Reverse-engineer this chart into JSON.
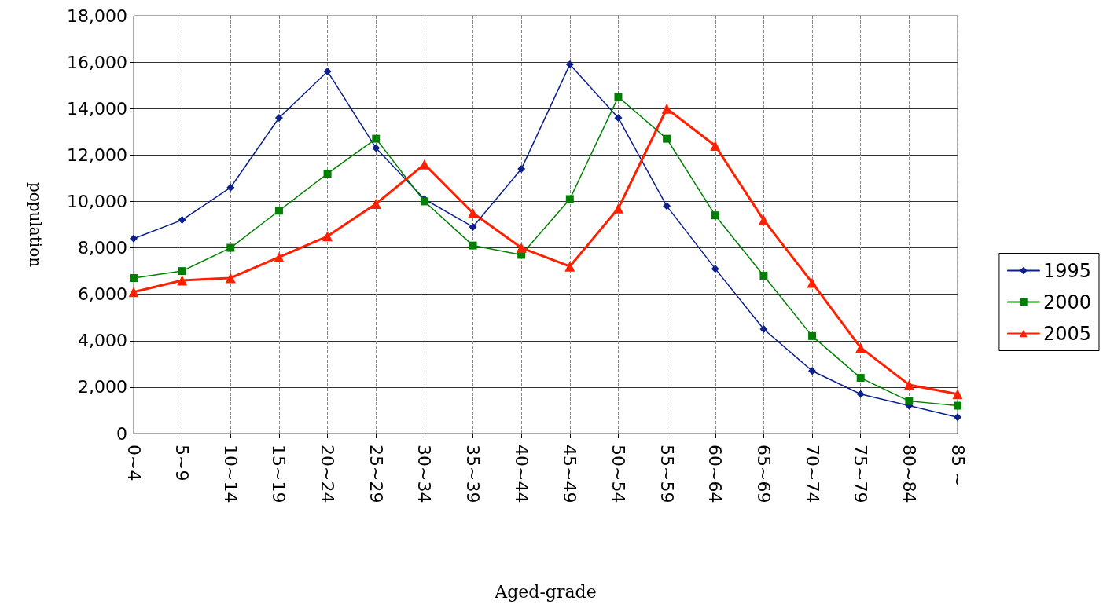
{
  "chart_data": {
    "type": "line",
    "xlabel": "Aged-grade",
    "ylabel": "population",
    "categories": [
      "0~4",
      "5~9",
      "10~14",
      "15~19",
      "20~24",
      "25~29",
      "30~34",
      "35~39",
      "40~44",
      "45~49",
      "50~54",
      "55~59",
      "60~64",
      "65~69",
      "70~74",
      "75~79",
      "80~84",
      "85 ~"
    ],
    "series": [
      {
        "name": "1995",
        "color": "#0c1f8c",
        "marker": "diamond",
        "values": [
          8400,
          9200,
          10600,
          13600,
          15600,
          12300,
          10100,
          8900,
          11400,
          15900,
          13600,
          9800,
          7100,
          4500,
          2700,
          1700,
          1200,
          700
        ]
      },
      {
        "name": "2000",
        "color": "#008000",
        "marker": "square",
        "values": [
          6700,
          7000,
          8000,
          9600,
          11200,
          12700,
          10000,
          8100,
          7700,
          10100,
          14500,
          12700,
          9400,
          6800,
          4200,
          2400,
          1400,
          1200
        ]
      },
      {
        "name": "2005",
        "color": "#ff2000",
        "marker": "triangle",
        "values": [
          6100,
          6600,
          6700,
          7600,
          8500,
          9900,
          11600,
          9500,
          8000,
          7200,
          9700,
          14000,
          12400,
          9200,
          6500,
          3700,
          2100,
          1700
        ]
      }
    ],
    "ylim": [
      0,
      18000
    ],
    "yticks": [
      0,
      {
        "value": 2000,
        "label": "2,000"
      },
      {
        "value": 4000,
        "label": "4,000"
      },
      {
        "value": 6000,
        "label": "6,000"
      },
      {
        "value": 8000,
        "label": "8,000"
      },
      {
        "value": 10000,
        "label": "10,000"
      },
      {
        "value": 12000,
        "label": "12,000"
      },
      {
        "value": 14000,
        "label": "14,000"
      },
      {
        "value": 16000,
        "label": "16,000"
      },
      {
        "value": 18000,
        "label": "18,000"
      }
    ],
    "grid": true,
    "legend": "right",
    "line_style": "solid"
  }
}
